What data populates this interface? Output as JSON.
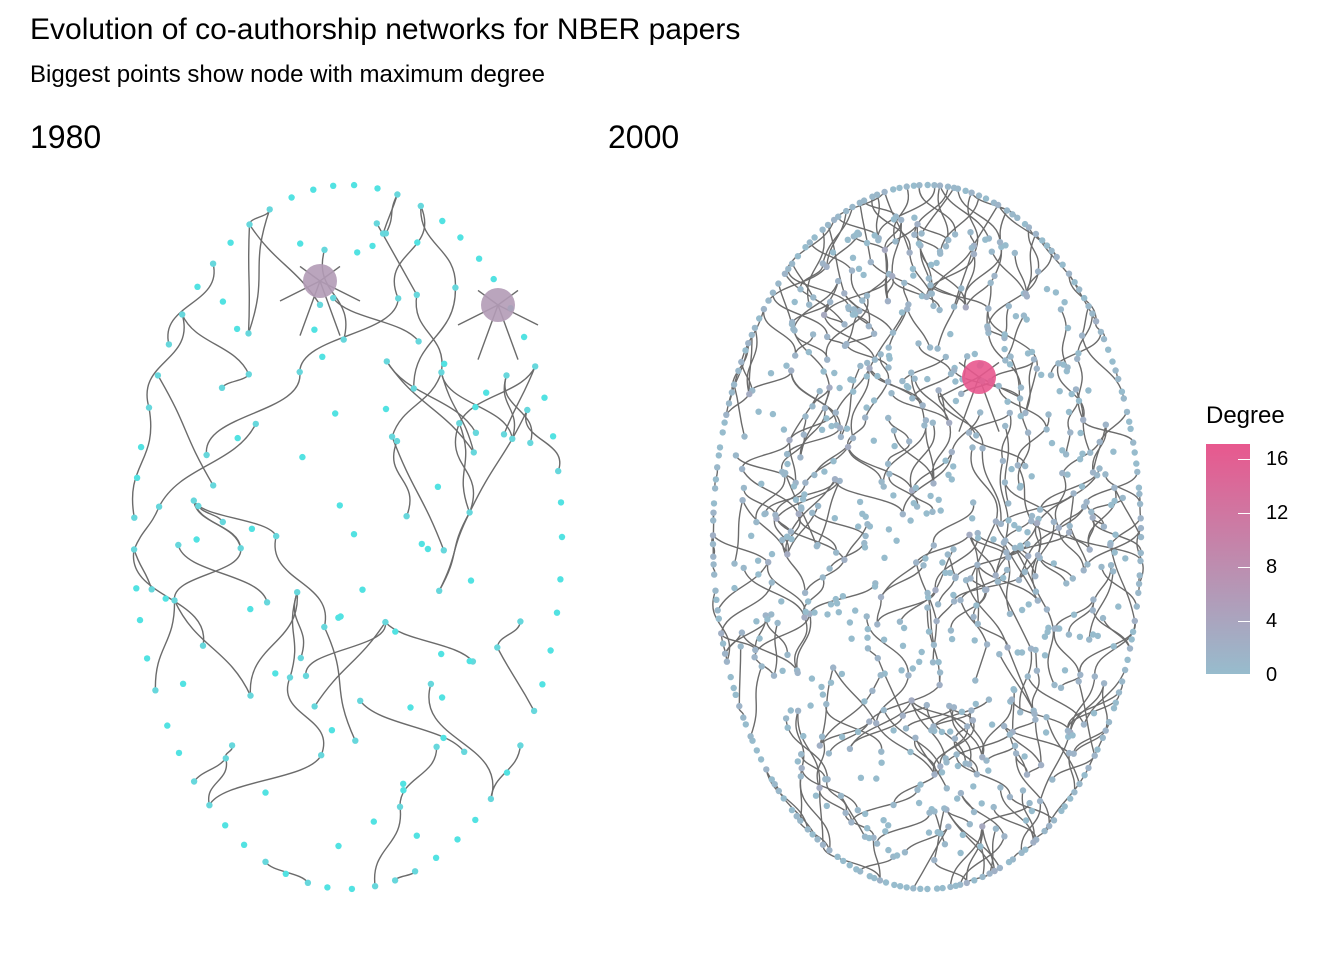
{
  "chart_data": {
    "type": "network",
    "title": "Evolution of co-authorship networks for NBER papers",
    "subtitle": "Biggest points show node with maximum degree",
    "colors": {
      "low": "#97bccd",
      "mid": "#b39bb6",
      "high": "#e8588e",
      "edge": "#6b6b6b",
      "cyan": "#52e2e2"
    },
    "panels": [
      {
        "name": "1980",
        "layout": "circle-ellipse",
        "approx_nodes": 170,
        "max_degree": 5,
        "max_degree_nodes": 2
      },
      {
        "name": "2000",
        "layout": "circle-ellipse",
        "approx_nodes": 900,
        "max_degree": 17,
        "max_degree_nodes": 1
      }
    ],
    "legend": {
      "title": "Degree",
      "scale": "continuous",
      "range": [
        0,
        17
      ],
      "ticks": [
        "16",
        "12",
        "8",
        "4",
        "0"
      ],
      "tick_values": [
        16,
        12,
        8,
        4,
        0
      ]
    }
  }
}
